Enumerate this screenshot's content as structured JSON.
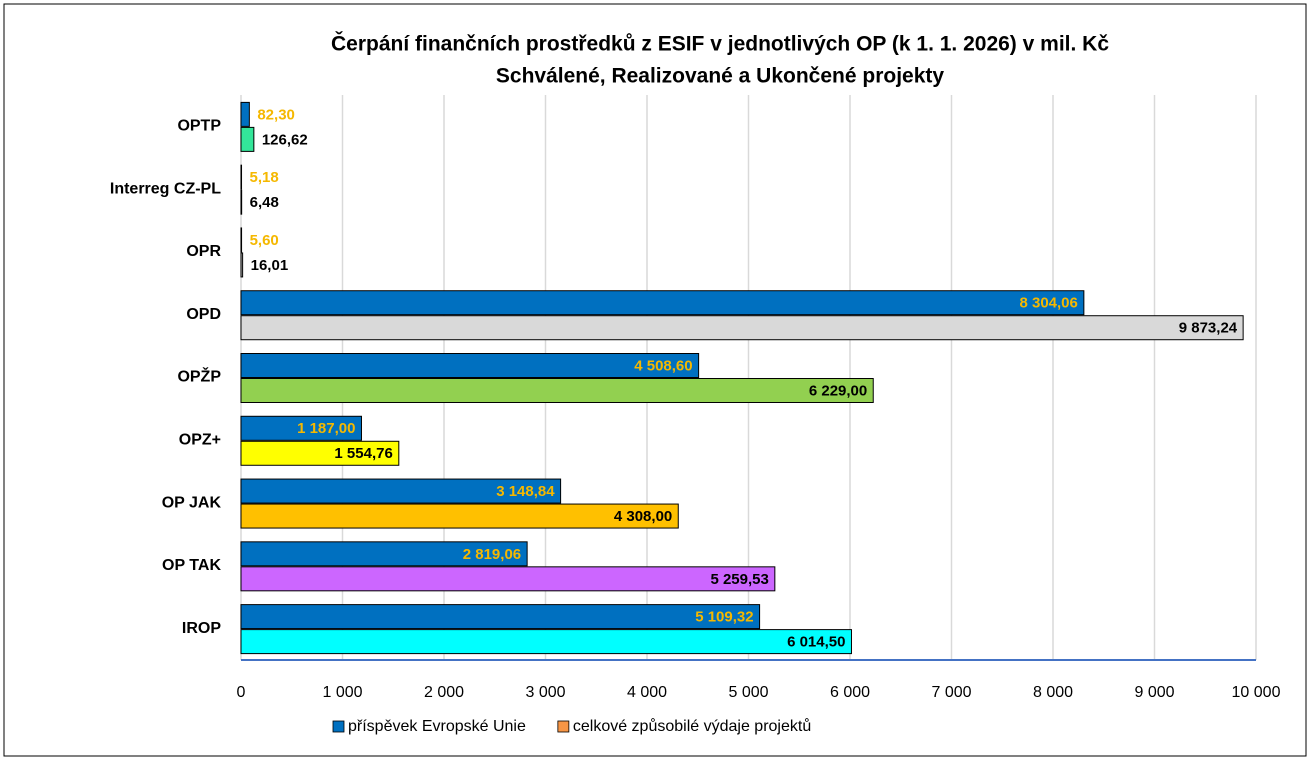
{
  "chart_data": {
    "type": "hbar",
    "title": "Čerpání finančních prostředků z ESIF v jednotlivých OP (k 1. 1. 2026) v mil. Kč",
    "subtitle": "Schválené, Realizované a Ukončené projekty",
    "categories": [
      "OPTP",
      "Interreg CZ-PL",
      "OPR",
      "OPD",
      "OPŽP",
      "OPZ+",
      "OP JAK",
      "OP TAK",
      "IROP"
    ],
    "series": [
      {
        "name": "příspěvek Evropské Unie",
        "color": "#0070c0",
        "label_color": "#f5b800",
        "values": [
          82.3,
          5.18,
          5.6,
          8304.06,
          4508.6,
          1187.0,
          3148.84,
          2819.06,
          5109.32
        ],
        "value_labels": [
          "82,30",
          "5,18",
          "5,60",
          "8 304,06",
          "4 508,60",
          "1 187,00",
          "3 148,84",
          "2 819,06",
          "5 109,32"
        ]
      },
      {
        "name": "celkové způsobilé výdaje projektů",
        "color": "#f79646",
        "label_color": "#000000",
        "colors": [
          "#33e69a",
          "#bfbfbf",
          "#bfbfbf",
          "#d9d9d9",
          "#92d050",
          "#ffff00",
          "#ffc000",
          "#cc66ff",
          "#00ffff"
        ],
        "values": [
          126.62,
          6.48,
          16.01,
          9873.24,
          6229.0,
          1554.76,
          4308.0,
          5259.53,
          6014.5
        ],
        "value_labels": [
          "126,62",
          "6,48",
          "16,01",
          "9 873,24",
          "6 229,00",
          "1 554,76",
          "4 308,00",
          "5 259,53",
          "6 014,50"
        ]
      }
    ],
    "xlim": [
      0,
      10000
    ],
    "xticks": [
      0,
      {
        "value": 1000,
        "label": "1 000"
      },
      {
        "value": 2000,
        "label": "2 000"
      },
      {
        "value": 3000,
        "label": "3 000"
      },
      {
        "value": 4000,
        "label": "4 000"
      },
      {
        "value": 5000,
        "label": "5 000"
      },
      {
        "value": 6000,
        "label": "6 000"
      },
      {
        "value": 7000,
        "label": "7 000"
      },
      {
        "value": 8000,
        "label": "8 000"
      },
      {
        "value": 9000,
        "label": "9 000"
      },
      {
        "value": 10000,
        "label": "10 000"
      }
    ],
    "grid": true
  }
}
